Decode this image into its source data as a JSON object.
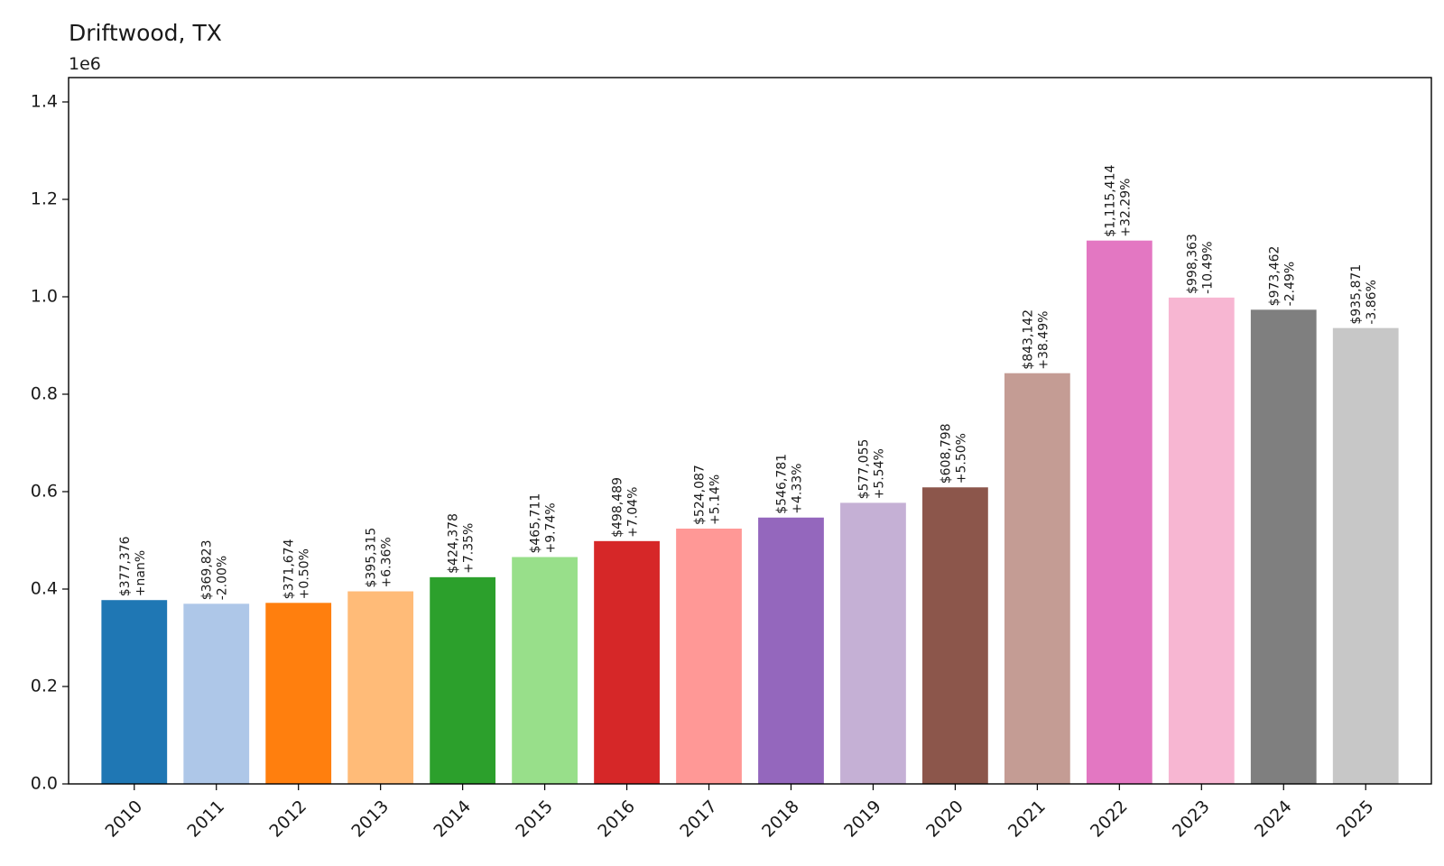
{
  "chart_data": {
    "type": "bar",
    "title": "Driftwood, TX",
    "y_offset_label": "1e6",
    "xlabel": "",
    "ylabel": "",
    "ylim": [
      0,
      1450000
    ],
    "y_ticks": [
      0,
      200000,
      400000,
      600000,
      800000,
      1000000,
      1200000,
      1400000
    ],
    "y_tick_labels": [
      "0.0",
      "0.2",
      "0.4",
      "0.6",
      "0.8",
      "1.0",
      "1.2",
      "1.4"
    ],
    "grid": false,
    "categories": [
      "2010",
      "2011",
      "2012",
      "2013",
      "2014",
      "2015",
      "2016",
      "2017",
      "2018",
      "2019",
      "2020",
      "2021",
      "2022",
      "2023",
      "2024",
      "2025"
    ],
    "values": [
      377376,
      369823,
      371674,
      395315,
      424378,
      465711,
      498489,
      524087,
      546781,
      577055,
      608798,
      843142,
      1115414,
      998363,
      973462,
      935871
    ],
    "value_labels": [
      "$377,376",
      "$369,823",
      "$371,674",
      "$395,315",
      "$424,378",
      "$465,711",
      "$498,489",
      "$524,087",
      "$546,781",
      "$577,055",
      "$608,798",
      "$843,142",
      "$1,115,414",
      "$998,363",
      "$973,462",
      "$935,871"
    ],
    "change_labels": [
      "+nan%",
      "-2.00%",
      "+0.50%",
      "+6.36%",
      "+7.35%",
      "+9.74%",
      "+7.04%",
      "+5.14%",
      "+4.33%",
      "+5.54%",
      "+5.50%",
      "+38.49%",
      "+32.29%",
      "-10.49%",
      "-2.49%",
      "-3.86%"
    ],
    "colors": [
      "#1f77b4",
      "#aec7e8",
      "#ff7f0e",
      "#ffbb78",
      "#2ca02c",
      "#98df8a",
      "#d62728",
      "#ff9896",
      "#9467bd",
      "#c5b0d5",
      "#8c564b",
      "#c49c94",
      "#e377c2",
      "#f7b6d2",
      "#7f7f7f",
      "#c7c7c7"
    ]
  }
}
